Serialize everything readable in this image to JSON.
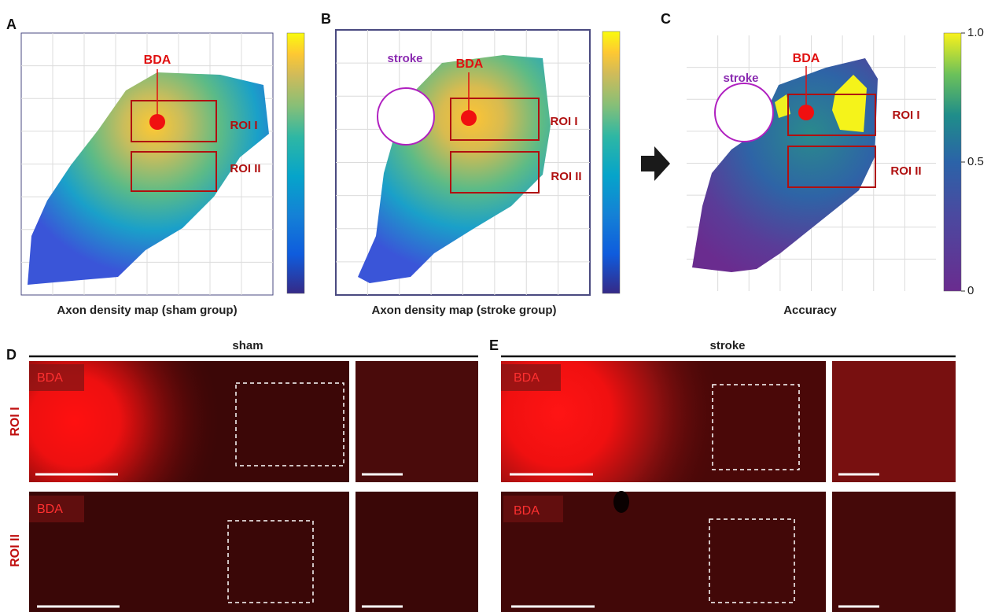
{
  "panels": {
    "a": {
      "letter": "A",
      "marker": "BDA",
      "rois": [
        "ROI I",
        "ROI II"
      ],
      "caption": "Axon density map (sham group)"
    },
    "b": {
      "letter": "B",
      "marker": "BDA",
      "lesion": "stroke",
      "rois": [
        "ROI I",
        "ROI II"
      ],
      "caption": "Axon density map (stroke group)"
    },
    "c": {
      "letter": "C",
      "marker": "BDA",
      "lesion": "stroke",
      "rois": [
        "ROI I",
        "ROI II"
      ],
      "caption": "Accuracy",
      "colorbar": {
        "ticks": [
          {
            "value": 1,
            "label": "1.0"
          },
          0.5,
          0
        ]
      }
    },
    "d": {
      "letter": "D",
      "title": "sham",
      "rows": [
        "ROI I",
        "ROI II"
      ],
      "marker": "BDA"
    },
    "e": {
      "letter": "E",
      "title": "stroke",
      "rows": [
        "ROI I",
        "ROI II"
      ],
      "marker": "BDA"
    }
  }
}
